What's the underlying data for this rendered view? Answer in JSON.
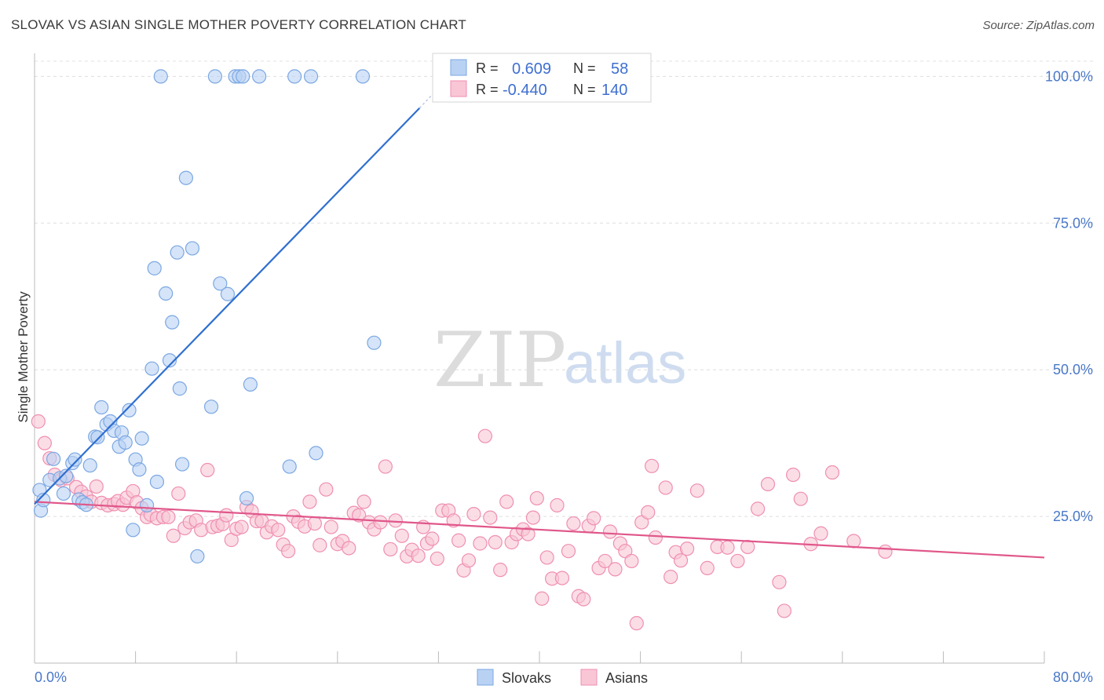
{
  "header": {
    "title": "SLOVAK VS ASIAN SINGLE MOTHER POVERTY CORRELATION CHART",
    "source": "Source: ZipAtlas.com"
  },
  "watermark": {
    "zip": "ZIP",
    "atlas": "atlas"
  },
  "legend_top": {
    "rows": [
      {
        "r_label": "R =",
        "r_value": "0.609",
        "n_label": "N =",
        "n_value": "58",
        "color": "#a9c8f0"
      },
      {
        "r_label": "R =",
        "r_value": "-0.440",
        "n_label": "N =",
        "n_value": "140",
        "color": "#f7b9cc"
      }
    ]
  },
  "legend_bottom": {
    "items": [
      "Slovaks",
      "Asians"
    ]
  },
  "chart_data": {
    "type": "scatter",
    "xlabel": "",
    "ylabel": "Single Mother Poverty",
    "xlim": [
      0,
      80
    ],
    "ylim": [
      0,
      105
    ],
    "x_tick_labels": [
      "0.0%",
      "80.0%"
    ],
    "y_ticks": [
      25,
      50,
      75,
      100
    ],
    "y_tick_labels": [
      "25.0%",
      "50.0%",
      "75.0%",
      "100.0%"
    ],
    "grid": true,
    "colors": {
      "slovaks": "#7ba7e3",
      "slovaks_fill": "#b9d2f3",
      "slovaks_line": "#2f6fd0",
      "asians": "#ef8fb0",
      "asians_fill": "#f9c6d6",
      "asians_line": "#e0578a"
    },
    "series": [
      {
        "name": "Slovaks",
        "trend": {
          "x": [
            0,
            30.5
          ],
          "y": [
            27.1,
            94.6
          ],
          "dashed_to": [
            32,
            98
          ]
        },
        "points": [
          [
            0.4,
            29.5
          ],
          [
            0.5,
            26.0
          ],
          [
            0.7,
            27.8
          ],
          [
            1.2,
            31.2
          ],
          [
            1.5,
            34.8
          ],
          [
            2.0,
            31.5
          ],
          [
            2.3,
            28.9
          ],
          [
            2.5,
            31.9
          ],
          [
            3.0,
            34.1
          ],
          [
            3.2,
            34.7
          ],
          [
            3.5,
            27.9
          ],
          [
            3.8,
            27.4
          ],
          [
            4.1,
            27.0
          ],
          [
            4.4,
            33.7
          ],
          [
            4.8,
            38.6
          ],
          [
            5.0,
            38.5
          ],
          [
            5.3,
            43.6
          ],
          [
            5.7,
            40.7
          ],
          [
            6.0,
            41.2
          ],
          [
            6.3,
            39.6
          ],
          [
            6.7,
            36.9
          ],
          [
            6.9,
            39.3
          ],
          [
            7.2,
            37.6
          ],
          [
            7.5,
            43.1
          ],
          [
            7.8,
            22.7
          ],
          [
            8.0,
            34.7
          ],
          [
            8.3,
            33.0
          ],
          [
            8.5,
            38.3
          ],
          [
            8.9,
            26.9
          ],
          [
            9.3,
            50.2
          ],
          [
            9.5,
            67.3
          ],
          [
            9.7,
            30.9
          ],
          [
            10.0,
            100.0
          ],
          [
            10.4,
            63.0
          ],
          [
            10.7,
            51.6
          ],
          [
            10.9,
            58.1
          ],
          [
            11.3,
            70.0
          ],
          [
            11.5,
            46.8
          ],
          [
            11.7,
            33.9
          ],
          [
            12.0,
            82.7
          ],
          [
            12.5,
            70.7
          ],
          [
            12.9,
            18.2
          ],
          [
            14.0,
            43.7
          ],
          [
            14.3,
            100.0
          ],
          [
            14.7,
            64.7
          ],
          [
            15.3,
            62.9
          ],
          [
            15.9,
            100.0
          ],
          [
            16.2,
            100.0
          ],
          [
            16.5,
            100.0
          ],
          [
            16.8,
            28.1
          ],
          [
            17.1,
            47.5
          ],
          [
            17.8,
            100.0
          ],
          [
            20.2,
            33.5
          ],
          [
            20.6,
            100.0
          ],
          [
            21.9,
            100.0
          ],
          [
            22.3,
            35.8
          ],
          [
            26.0,
            100.0
          ],
          [
            26.9,
            54.6
          ]
        ]
      },
      {
        "name": "Asians",
        "trend": {
          "x": [
            0,
            80
          ],
          "y": [
            27.5,
            18.0
          ]
        },
        "points": [
          [
            0.3,
            41.2
          ],
          [
            0.8,
            37.5
          ],
          [
            1.2,
            34.9
          ],
          [
            1.6,
            32.1
          ],
          [
            2.1,
            31.2
          ],
          [
            2.6,
            31.5
          ],
          [
            3.3,
            30.0
          ],
          [
            3.7,
            29.2
          ],
          [
            4.1,
            28.4
          ],
          [
            4.5,
            27.5
          ],
          [
            4.9,
            30.1
          ],
          [
            5.3,
            27.3
          ],
          [
            5.8,
            26.9
          ],
          [
            6.3,
            27.1
          ],
          [
            6.6,
            27.6
          ],
          [
            7.0,
            27.0
          ],
          [
            7.3,
            28.2
          ],
          [
            7.8,
            29.3
          ],
          [
            8.1,
            27.4
          ],
          [
            8.5,
            26.4
          ],
          [
            8.9,
            24.9
          ],
          [
            9.2,
            25.3
          ],
          [
            9.7,
            24.7
          ],
          [
            10.2,
            24.9
          ],
          [
            10.6,
            24.9
          ],
          [
            11.0,
            21.7
          ],
          [
            11.4,
            28.9
          ],
          [
            11.9,
            23.0
          ],
          [
            12.3,
            24.0
          ],
          [
            12.8,
            24.3
          ],
          [
            13.2,
            22.7
          ],
          [
            13.7,
            32.9
          ],
          [
            14.1,
            23.2
          ],
          [
            14.5,
            23.4
          ],
          [
            14.9,
            23.7
          ],
          [
            15.2,
            25.2
          ],
          [
            15.6,
            21.0
          ],
          [
            16.0,
            22.9
          ],
          [
            16.4,
            23.2
          ],
          [
            16.8,
            26.6
          ],
          [
            17.2,
            25.9
          ],
          [
            17.6,
            24.2
          ],
          [
            18.0,
            24.2
          ],
          [
            18.4,
            22.3
          ],
          [
            18.8,
            23.3
          ],
          [
            19.3,
            22.7
          ],
          [
            19.7,
            20.2
          ],
          [
            20.1,
            19.1
          ],
          [
            20.5,
            25.0
          ],
          [
            20.9,
            24.1
          ],
          [
            21.4,
            23.3
          ],
          [
            21.8,
            27.5
          ],
          [
            22.2,
            23.8
          ],
          [
            22.6,
            20.1
          ],
          [
            23.1,
            29.6
          ],
          [
            23.5,
            23.2
          ],
          [
            24.0,
            20.3
          ],
          [
            24.4,
            20.8
          ],
          [
            24.9,
            19.6
          ],
          [
            25.3,
            25.6
          ],
          [
            25.7,
            25.2
          ],
          [
            26.1,
            27.5
          ],
          [
            26.5,
            24.0
          ],
          [
            26.9,
            22.8
          ],
          [
            27.4,
            24.0
          ],
          [
            27.8,
            33.5
          ],
          [
            28.2,
            19.4
          ],
          [
            28.6,
            24.3
          ],
          [
            29.1,
            21.7
          ],
          [
            29.5,
            18.2
          ],
          [
            29.9,
            19.3
          ],
          [
            30.4,
            18.3
          ],
          [
            30.8,
            23.2
          ],
          [
            31.1,
            20.4
          ],
          [
            31.5,
            21.2
          ],
          [
            31.9,
            17.8
          ],
          [
            32.3,
            26.0
          ],
          [
            32.8,
            26.0
          ],
          [
            33.2,
            24.3
          ],
          [
            33.6,
            20.9
          ],
          [
            34.0,
            15.8
          ],
          [
            34.4,
            17.5
          ],
          [
            34.8,
            25.4
          ],
          [
            35.3,
            20.4
          ],
          [
            35.7,
            38.7
          ],
          [
            36.1,
            24.8
          ],
          [
            36.5,
            20.6
          ],
          [
            36.9,
            15.9
          ],
          [
            37.4,
            27.5
          ],
          [
            37.8,
            20.6
          ],
          [
            38.2,
            22.0
          ],
          [
            38.7,
            22.8
          ],
          [
            39.1,
            22.0
          ],
          [
            39.5,
            24.8
          ],
          [
            39.8,
            28.1
          ],
          [
            40.2,
            11.0
          ],
          [
            40.6,
            18.0
          ],
          [
            41.0,
            14.4
          ],
          [
            41.4,
            26.9
          ],
          [
            41.8,
            14.5
          ],
          [
            42.3,
            19.1
          ],
          [
            42.7,
            23.8
          ],
          [
            43.1,
            11.4
          ],
          [
            43.5,
            10.9
          ],
          [
            43.9,
            23.4
          ],
          [
            44.3,
            24.7
          ],
          [
            44.7,
            16.2
          ],
          [
            45.2,
            17.4
          ],
          [
            45.6,
            22.4
          ],
          [
            46.0,
            16.0
          ],
          [
            46.4,
            20.4
          ],
          [
            46.8,
            19.1
          ],
          [
            47.3,
            17.4
          ],
          [
            47.7,
            6.8
          ],
          [
            48.1,
            24.0
          ],
          [
            48.6,
            25.7
          ],
          [
            48.9,
            33.6
          ],
          [
            49.2,
            21.4
          ],
          [
            50.0,
            29.9
          ],
          [
            50.4,
            14.7
          ],
          [
            50.8,
            18.9
          ],
          [
            51.2,
            17.5
          ],
          [
            51.7,
            19.5
          ],
          [
            52.5,
            29.4
          ],
          [
            53.3,
            16.2
          ],
          [
            54.1,
            19.8
          ],
          [
            54.9,
            19.7
          ],
          [
            55.7,
            17.4
          ],
          [
            56.5,
            19.8
          ],
          [
            57.3,
            26.3
          ],
          [
            58.1,
            30.5
          ],
          [
            59.0,
            13.8
          ],
          [
            59.4,
            8.9
          ],
          [
            60.1,
            32.1
          ],
          [
            60.7,
            28.0
          ],
          [
            61.5,
            20.3
          ],
          [
            62.3,
            22.1
          ],
          [
            63.2,
            32.5
          ],
          [
            64.9,
            20.8
          ],
          [
            67.4,
            19.0
          ]
        ]
      }
    ]
  }
}
